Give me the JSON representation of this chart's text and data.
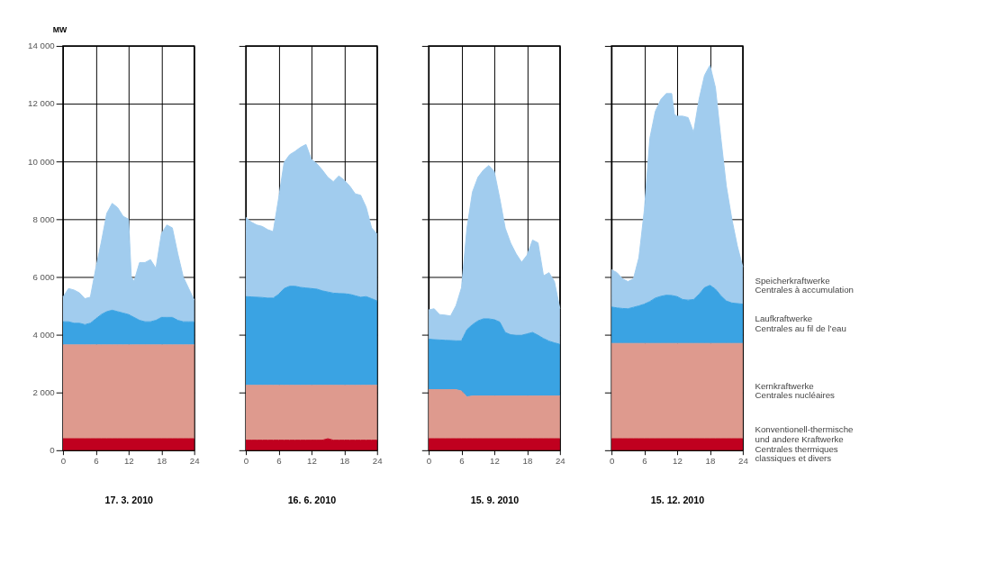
{
  "chart_data": [
    {
      "type": "area",
      "stacked": true,
      "xlabel": "17. 3. 2010",
      "ylabel": "MW",
      "grid": true,
      "x": [
        0,
        1,
        2,
        3,
        4,
        5,
        6,
        7,
        8,
        9,
        10,
        11,
        12,
        12.5,
        13,
        14,
        15,
        16,
        17,
        18,
        19,
        20,
        21,
        22,
        23,
        24
      ],
      "xlim": [
        0,
        24
      ],
      "xticks": [
        0,
        6,
        12,
        18,
        24
      ],
      "ylim": [
        0,
        14000
      ],
      "yticks": [
        {
          "value": 0,
          "label": "0"
        },
        {
          "value": 2000,
          "label": "2 000"
        },
        {
          "value": 4000,
          "label": "4 000"
        },
        {
          "value": 6000,
          "label": "6 000"
        },
        {
          "value": 8000,
          "label": "8 000"
        },
        {
          "value": 10000,
          "label": "10 000"
        },
        {
          "value": 12000,
          "label": "12 000"
        },
        {
          "value": 14000,
          "label": "14 000"
        }
      ],
      "series": [
        {
          "color": "#c0001f",
          "values": [
            400,
            400,
            400,
            400,
            400,
            400,
            400,
            400,
            400,
            400,
            400,
            400,
            400,
            400,
            400,
            400,
            400,
            400,
            400,
            400,
            400,
            400,
            400,
            400,
            400,
            400
          ]
        },
        {
          "color": "#de9a8e",
          "values": [
            3250,
            3250,
            3250,
            3250,
            3250,
            3250,
            3250,
            3250,
            3250,
            3250,
            3250,
            3250,
            3250,
            3250,
            3250,
            3250,
            3250,
            3250,
            3250,
            3250,
            3250,
            3250,
            3250,
            3250,
            3250,
            3250
          ]
        },
        {
          "color": "#3aa3e3",
          "values": [
            800,
            800,
            750,
            750,
            700,
            750,
            900,
            1050,
            1150,
            1200,
            1150,
            1100,
            1050,
            1000,
            950,
            850,
            800,
            800,
            850,
            950,
            950,
            950,
            850,
            800,
            800,
            800
          ]
        },
        {
          "color": "#a1ccee",
          "values": [
            850,
            1150,
            1150,
            1050,
            900,
            900,
            1750,
            2500,
            3400,
            3700,
            3600,
            3350,
            3300,
            1350,
            1250,
            2000,
            2050,
            2150,
            1800,
            2900,
            3200,
            3100,
            2300,
            1550,
            1150,
            750
          ]
        }
      ]
    },
    {
      "type": "area",
      "stacked": true,
      "xlabel": "16. 6. 2010",
      "grid": true,
      "tick_labels": "x",
      "x": [
        0,
        1,
        2,
        3,
        4,
        5,
        6,
        7,
        8,
        9,
        10,
        11,
        12,
        13,
        14,
        15,
        16,
        17,
        18,
        19,
        20,
        21,
        22,
        23,
        24
      ],
      "xlim": [
        0,
        24
      ],
      "xticks": [
        0,
        6,
        12,
        18,
        24
      ],
      "ylim": [
        0,
        14000
      ],
      "yticks": [
        0,
        2000,
        4000,
        6000,
        8000,
        10000,
        12000,
        14000
      ],
      "series": [
        {
          "color": "#c0001f",
          "values": [
            350,
            350,
            350,
            350,
            350,
            350,
            350,
            350,
            350,
            350,
            350,
            350,
            350,
            350,
            350,
            400,
            350,
            350,
            350,
            350,
            350,
            350,
            350,
            350,
            350
          ]
        },
        {
          "color": "#de9a8e",
          "values": [
            1900,
            1900,
            1900,
            1900,
            1900,
            1900,
            1900,
            1900,
            1900,
            1900,
            1900,
            1900,
            1900,
            1900,
            1900,
            1850,
            1900,
            1900,
            1900,
            1900,
            1900,
            1900,
            1900,
            1900,
            1900
          ]
        },
        {
          "color": "#3aa3e3",
          "values": [
            3070,
            3060,
            3050,
            3040,
            3020,
            3020,
            3150,
            3350,
            3430,
            3430,
            3390,
            3370,
            3350,
            3330,
            3270,
            3230,
            3190,
            3180,
            3170,
            3150,
            3100,
            3050,
            3070,
            3000,
            2920
          ]
        },
        {
          "color": "#a1ccee",
          "values": [
            2740,
            2590,
            2500,
            2460,
            2370,
            2300,
            3330,
            4370,
            4550,
            4670,
            4850,
            4970,
            4470,
            4340,
            4180,
            3970,
            3860,
            4070,
            3930,
            3750,
            3530,
            3530,
            3100,
            2450,
            2320
          ]
        }
      ]
    },
    {
      "type": "area",
      "stacked": true,
      "xlabel": "15. 9. 2010",
      "grid": true,
      "tick_labels": "x",
      "x": [
        0,
        1,
        2,
        3,
        4,
        5,
        6,
        7,
        8,
        9,
        10,
        11,
        12,
        13,
        14,
        15,
        16,
        17,
        18,
        19,
        20,
        21,
        22,
        23,
        24
      ],
      "xlim": [
        0,
        24
      ],
      "xticks": [
        0,
        6,
        12,
        18,
        24
      ],
      "ylim": [
        0,
        14000
      ],
      "yticks": [
        0,
        2000,
        4000,
        6000,
        8000,
        10000,
        12000,
        14000
      ],
      "series": [
        {
          "color": "#c0001f",
          "values": [
            400,
            400,
            400,
            400,
            400,
            400,
            400,
            400,
            400,
            400,
            400,
            400,
            400,
            400,
            400,
            400,
            400,
            400,
            400,
            400,
            400,
            400,
            400,
            400,
            400
          ]
        },
        {
          "color": "#de9a8e",
          "values": [
            1700,
            1700,
            1700,
            1700,
            1700,
            1700,
            1650,
            1450,
            1480,
            1480,
            1480,
            1480,
            1480,
            1480,
            1480,
            1480,
            1480,
            1480,
            1480,
            1480,
            1480,
            1480,
            1480,
            1480,
            1480
          ]
        },
        {
          "color": "#3aa3e3",
          "values": [
            1750,
            1730,
            1720,
            1710,
            1700,
            1690,
            1740,
            2330,
            2470,
            2600,
            2670,
            2670,
            2640,
            2560,
            2200,
            2120,
            2100,
            2100,
            2150,
            2200,
            2100,
            1990,
            1900,
            1840,
            1790
          ]
        },
        {
          "color": "#a1ccee",
          "values": [
            1010,
            1070,
            880,
            870,
            850,
            1220,
            1840,
            3520,
            4590,
            4970,
            5150,
            5310,
            5130,
            4280,
            3610,
            3170,
            2820,
            2530,
            2730,
            3200,
            3200,
            2170,
            2370,
            2120,
            1230
          ]
        }
      ]
    },
    {
      "type": "area",
      "stacked": true,
      "xlabel": "15. 12. 2010",
      "grid": true,
      "tick_labels": "x",
      "legend": "right",
      "x": [
        0,
        1,
        2,
        3,
        4,
        5,
        6,
        7,
        8,
        9,
        10,
        11,
        11.5,
        12,
        13,
        14,
        15,
        16,
        17,
        18,
        19,
        20,
        21,
        22,
        23,
        24
      ],
      "xlim": [
        0,
        24
      ],
      "xticks": [
        0,
        6,
        12,
        18,
        24
      ],
      "ylim": [
        0,
        14000
      ],
      "yticks": [
        0,
        2000,
        4000,
        6000,
        8000,
        10000,
        12000,
        14000
      ],
      "series": [
        {
          "name": "Konventionell-thermische\nund andere Kraftwerke\nCentrales thermiques\nclassiques et divers",
          "color": "#c0001f",
          "values": [
            400,
            400,
            400,
            400,
            400,
            400,
            400,
            400,
            400,
            400,
            400,
            400,
            400,
            400,
            400,
            400,
            400,
            400,
            400,
            400,
            400,
            400,
            400,
            400,
            400,
            400
          ]
        },
        {
          "name": "Kernkraftwerke\nCentrales nucléaires",
          "color": "#de9a8e",
          "values": [
            3300,
            3300,
            3300,
            3300,
            3300,
            3300,
            3300,
            3300,
            3300,
            3300,
            3300,
            3300,
            3300,
            3300,
            3300,
            3300,
            3300,
            3300,
            3300,
            3300,
            3300,
            3300,
            3300,
            3300,
            3300,
            3300
          ]
        },
        {
          "name": "Laufkraftwerke\nCentrales au fil de l’eau",
          "color": "#3aa3e3",
          "values": [
            1260,
            1230,
            1210,
            1200,
            1250,
            1300,
            1360,
            1450,
            1570,
            1630,
            1670,
            1660,
            1640,
            1620,
            1520,
            1500,
            1520,
            1700,
            1930,
            2010,
            1880,
            1650,
            1470,
            1400,
            1380,
            1360
          ]
        },
        {
          "name": "Speicherkraftwerke\nCentrales à accumulation",
          "color": "#a1ccee",
          "values": [
            1290,
            1220,
            1030,
            940,
            990,
            1670,
            3260,
            5650,
            6460,
            6810,
            6980,
            6990,
            6280,
            6250,
            6350,
            6320,
            5790,
            6750,
            7350,
            7620,
            6980,
            5450,
            3970,
            2910,
            2000,
            1290
          ]
        }
      ]
    }
  ]
}
